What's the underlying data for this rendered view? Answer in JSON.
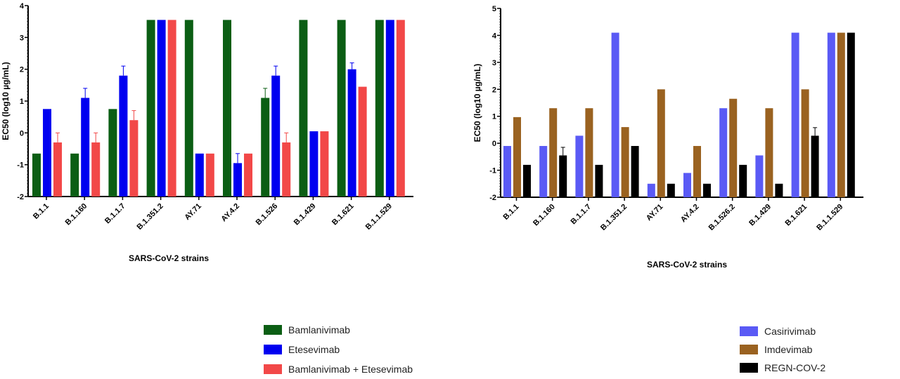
{
  "chart_data": [
    {
      "type": "bar",
      "ylabel": "EC50 (log10 µg/mL)",
      "xlabel": "SARS-CoV-2 strains",
      "ylim": [
        -2,
        4
      ],
      "yticks": [
        -2,
        -1,
        0,
        1,
        2,
        3,
        4
      ],
      "grid": false,
      "legend_position": "bottom",
      "categories": [
        "B.1.1",
        "B.1.160",
        "B.1.1.7",
        "B.1.351.2",
        "AY.71",
        "AY.4.2",
        "B.1.526",
        "B.1.429",
        "B.1.621",
        "B.1.1.529"
      ],
      "series": [
        {
          "name": "Bamlanivimab",
          "color": "#0b5e14",
          "values": [
            -0.65,
            -0.65,
            0.75,
            3.55,
            3.55,
            3.55,
            1.1,
            3.55,
            3.55,
            3.55
          ],
          "errors": [
            0,
            0,
            0,
            0,
            0,
            0,
            0.3,
            0,
            0,
            0
          ]
        },
        {
          "name": "Etesevimab",
          "color": "#0000f0",
          "values": [
            0.75,
            1.1,
            1.8,
            3.55,
            -0.65,
            -0.95,
            1.8,
            0.05,
            2.0,
            3.55
          ],
          "errors": [
            0,
            0.3,
            0.3,
            0,
            0,
            0.3,
            0.3,
            0,
            0.2,
            0
          ]
        },
        {
          "name": "Bamlanivimab + Etesevimab",
          "color": "#f24848",
          "values": [
            -0.3,
            -0.3,
            0.4,
            3.55,
            -0.65,
            -0.65,
            -0.3,
            0.05,
            1.45,
            3.55
          ],
          "errors": [
            0.3,
            0.3,
            0.3,
            0,
            0,
            0,
            0.3,
            0,
            0,
            0
          ]
        }
      ]
    },
    {
      "type": "bar",
      "ylabel": "EC50 (log10 µg/mL)",
      "xlabel": "SARS-CoV-2 strains",
      "ylim": [
        -2,
        5
      ],
      "yticks": [
        -2,
        -1,
        0,
        1,
        2,
        3,
        4,
        5
      ],
      "grid": false,
      "legend_position": "bottom-right",
      "categories": [
        "B.1.1",
        "B.1.160",
        "B.1.1.7",
        "B.1.351.2",
        "AY.71",
        "AY.4.2",
        "B.1.526.2",
        "B.1.429",
        "B.1.621",
        "B.1.1.529"
      ],
      "series": [
        {
          "name": "Casirivimab",
          "color": "#5a5af5",
          "values": [
            -0.1,
            -0.1,
            0.28,
            4.1,
            -1.5,
            -1.1,
            1.3,
            -0.45,
            4.1,
            4.1
          ],
          "errors": [
            0,
            0,
            0,
            0,
            0,
            0,
            0,
            0,
            0,
            0
          ]
        },
        {
          "name": "Imdevimab",
          "color": "#9a6220",
          "values": [
            0.97,
            1.3,
            1.3,
            0.6,
            2.0,
            -0.1,
            1.65,
            1.3,
            2.0,
            4.1
          ],
          "errors": [
            0,
            0,
            0,
            0,
            0,
            0,
            0,
            0,
            0,
            0
          ]
        },
        {
          "name": "REGN-COV-2",
          "color": "#000000",
          "values": [
            -0.8,
            -0.45,
            -0.8,
            -0.1,
            -1.5,
            -1.5,
            -0.8,
            -1.5,
            0.28,
            4.1
          ],
          "errors": [
            0,
            0.3,
            0,
            0,
            0,
            0,
            0,
            0,
            0.3,
            0
          ]
        }
      ]
    }
  ]
}
